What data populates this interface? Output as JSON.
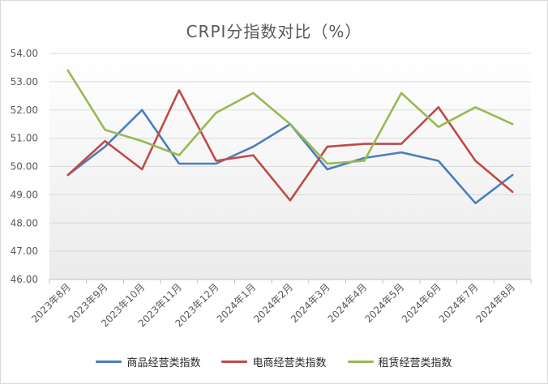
{
  "chart_data": {
    "type": "line",
    "title": "CRPI分指数对比（%）",
    "categories": [
      "2023年8月",
      "2023年9月",
      "2023年10月",
      "2023年11月",
      "2023年12月",
      "2024年1月",
      "2024年2月",
      "2024年3月",
      "2024年4月",
      "2024年5月",
      "2024年6月",
      "2024年7月",
      "2024年8月"
    ],
    "ylim": [
      46,
      54
    ],
    "yticks": [
      "46.00",
      "47.00",
      "48.00",
      "49.00",
      "50.00",
      "51.00",
      "52.00",
      "53.00",
      "54.00"
    ],
    "grid": "horizontal",
    "legend": "bottom",
    "series": [
      {
        "name": "商品经营类指数",
        "color": "#4a7ebb",
        "values": [
          49.7,
          50.7,
          52.0,
          50.1,
          50.1,
          50.7,
          51.5,
          49.9,
          50.3,
          50.5,
          50.2,
          48.7,
          49.7
        ]
      },
      {
        "name": "电商经营类指数",
        "color": "#be4b48",
        "values": [
          49.7,
          50.9,
          49.9,
          52.7,
          50.2,
          50.4,
          48.8,
          50.7,
          50.8,
          50.8,
          52.1,
          50.2,
          49.1
        ]
      },
      {
        "name": "租赁经营类指数",
        "color": "#98b954",
        "values": [
          53.4,
          51.3,
          50.9,
          50.4,
          51.9,
          52.6,
          51.5,
          50.1,
          50.2,
          52.6,
          51.4,
          52.1,
          51.5
        ]
      }
    ]
  }
}
